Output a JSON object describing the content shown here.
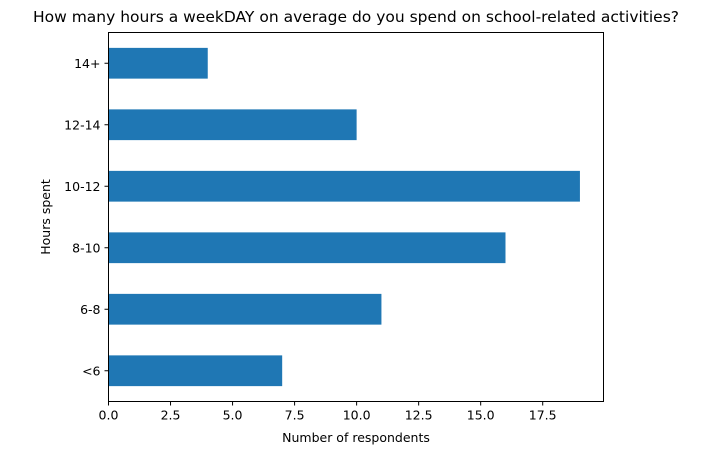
{
  "chart_data": {
    "type": "bar",
    "orientation": "horizontal",
    "title": "How many hours a weekDAY on average do you spend on school-related activities?",
    "xlabel": "Number of respondents",
    "ylabel": "Hours spent",
    "categories": [
      "<6",
      "6-8",
      "8-10",
      "10-12",
      "12-14",
      "14+"
    ],
    "values": [
      7,
      11,
      16,
      19,
      10,
      4
    ],
    "xlim": [
      0,
      19.95
    ],
    "xticks": [
      "0.0",
      "2.5",
      "5.0",
      "7.5",
      "10.0",
      "12.5",
      "15.0",
      "17.5"
    ],
    "bar_color": "#1f77b4",
    "grid": false,
    "legend": false
  }
}
